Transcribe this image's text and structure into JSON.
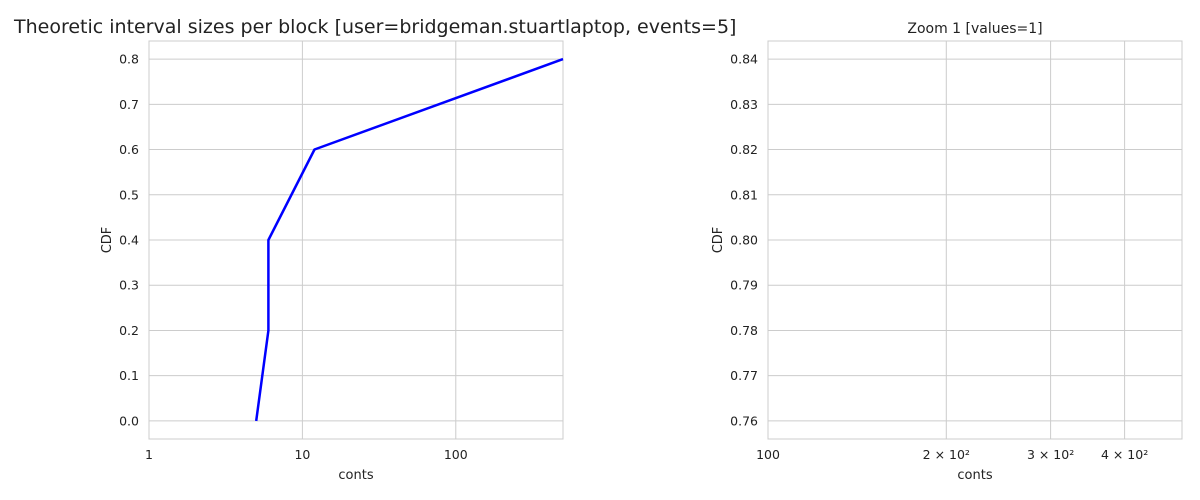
{
  "chart_data": [
    {
      "type": "line",
      "title": "Theoretic interval sizes per block [user=bridgeman.stuartlaptop, events=5]",
      "xlabel": "conts",
      "ylabel": "CDF",
      "xscale": "log",
      "xlim": [
        1,
        500
      ],
      "ylim": [
        -0.04,
        0.84
      ],
      "xticks": [
        1,
        10,
        100
      ],
      "xtick_labels": [
        "1",
        "10",
        "100"
      ],
      "yticks": [
        0.0,
        0.1,
        0.2,
        0.3,
        0.4,
        0.5,
        0.6,
        0.7,
        0.8
      ],
      "ytick_labels": [
        "0.0",
        "0.1",
        "0.2",
        "0.3",
        "0.4",
        "0.5",
        "0.6",
        "0.7",
        "0.8"
      ],
      "grid": true,
      "series": [
        {
          "color": "#0000ff",
          "x": [
            5,
            6,
            6,
            12,
            500
          ],
          "y": [
            0.0,
            0.2,
            0.4,
            0.6,
            0.8
          ]
        }
      ]
    },
    {
      "type": "line",
      "title": "Zoom 1 [values=1]",
      "xlabel": "conts",
      "ylabel": "CDF",
      "xscale": "log",
      "xlim": [
        100,
        500
      ],
      "ylim": [
        0.756,
        0.844
      ],
      "xticks": [
        100,
        200,
        300,
        400
      ],
      "xtick_labels": [
        "100",
        "2 × 10²",
        "3 × 10²",
        "4 × 10²"
      ],
      "yticks": [
        0.76,
        0.77,
        0.78,
        0.79,
        0.8,
        0.81,
        0.82,
        0.83,
        0.84
      ],
      "ytick_labels": [
        "0.76",
        "0.77",
        "0.78",
        "0.79",
        "0.80",
        "0.81",
        "0.82",
        "0.83",
        "0.84"
      ],
      "grid": true,
      "series": []
    }
  ]
}
